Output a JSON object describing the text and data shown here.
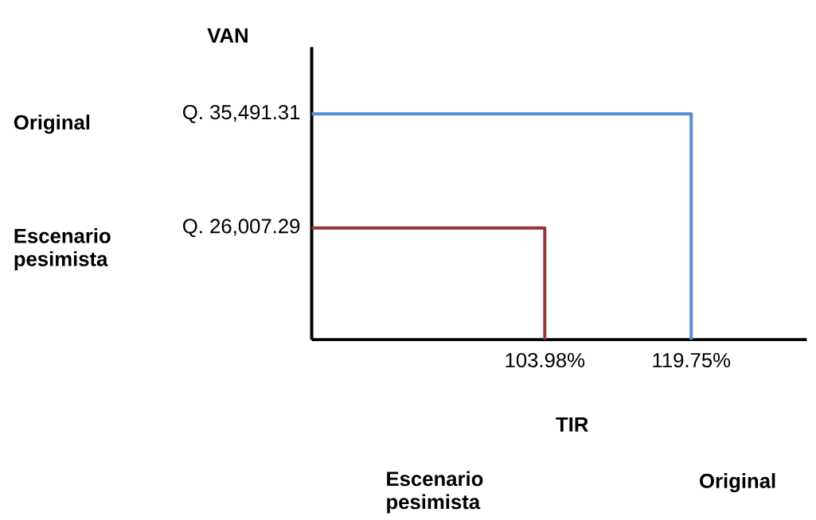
{
  "chart_data": {
    "type": "line",
    "xlabel": "TIR",
    "ylabel": "VAN",
    "xlim": [
      78.88,
      132.2
    ],
    "ylim": [
      16720,
      41050
    ],
    "xticks": [
      {
        "value": 103.98,
        "label": "103.98%"
      },
      {
        "value": 119.75,
        "label": "119.75%"
      }
    ],
    "yticks": [
      {
        "value": 26007.29,
        "label": "Q. 26,007.29"
      },
      {
        "value": 35491.31,
        "label": "Q. 35,491.31"
      }
    ],
    "series": [
      {
        "color": "#558ed5",
        "x": [
          78.88,
          119.75,
          119.75
        ],
        "values": [
          35491.31,
          35491.31,
          16720
        ]
      },
      {
        "color": "#953735",
        "x": [
          78.88,
          103.98,
          103.98
        ],
        "values": [
          26007.29,
          26007.29,
          16720
        ]
      }
    ],
    "annotations": [
      "Original",
      "Escenario pesimista",
      "Escenario pesimista",
      "Original"
    ]
  }
}
